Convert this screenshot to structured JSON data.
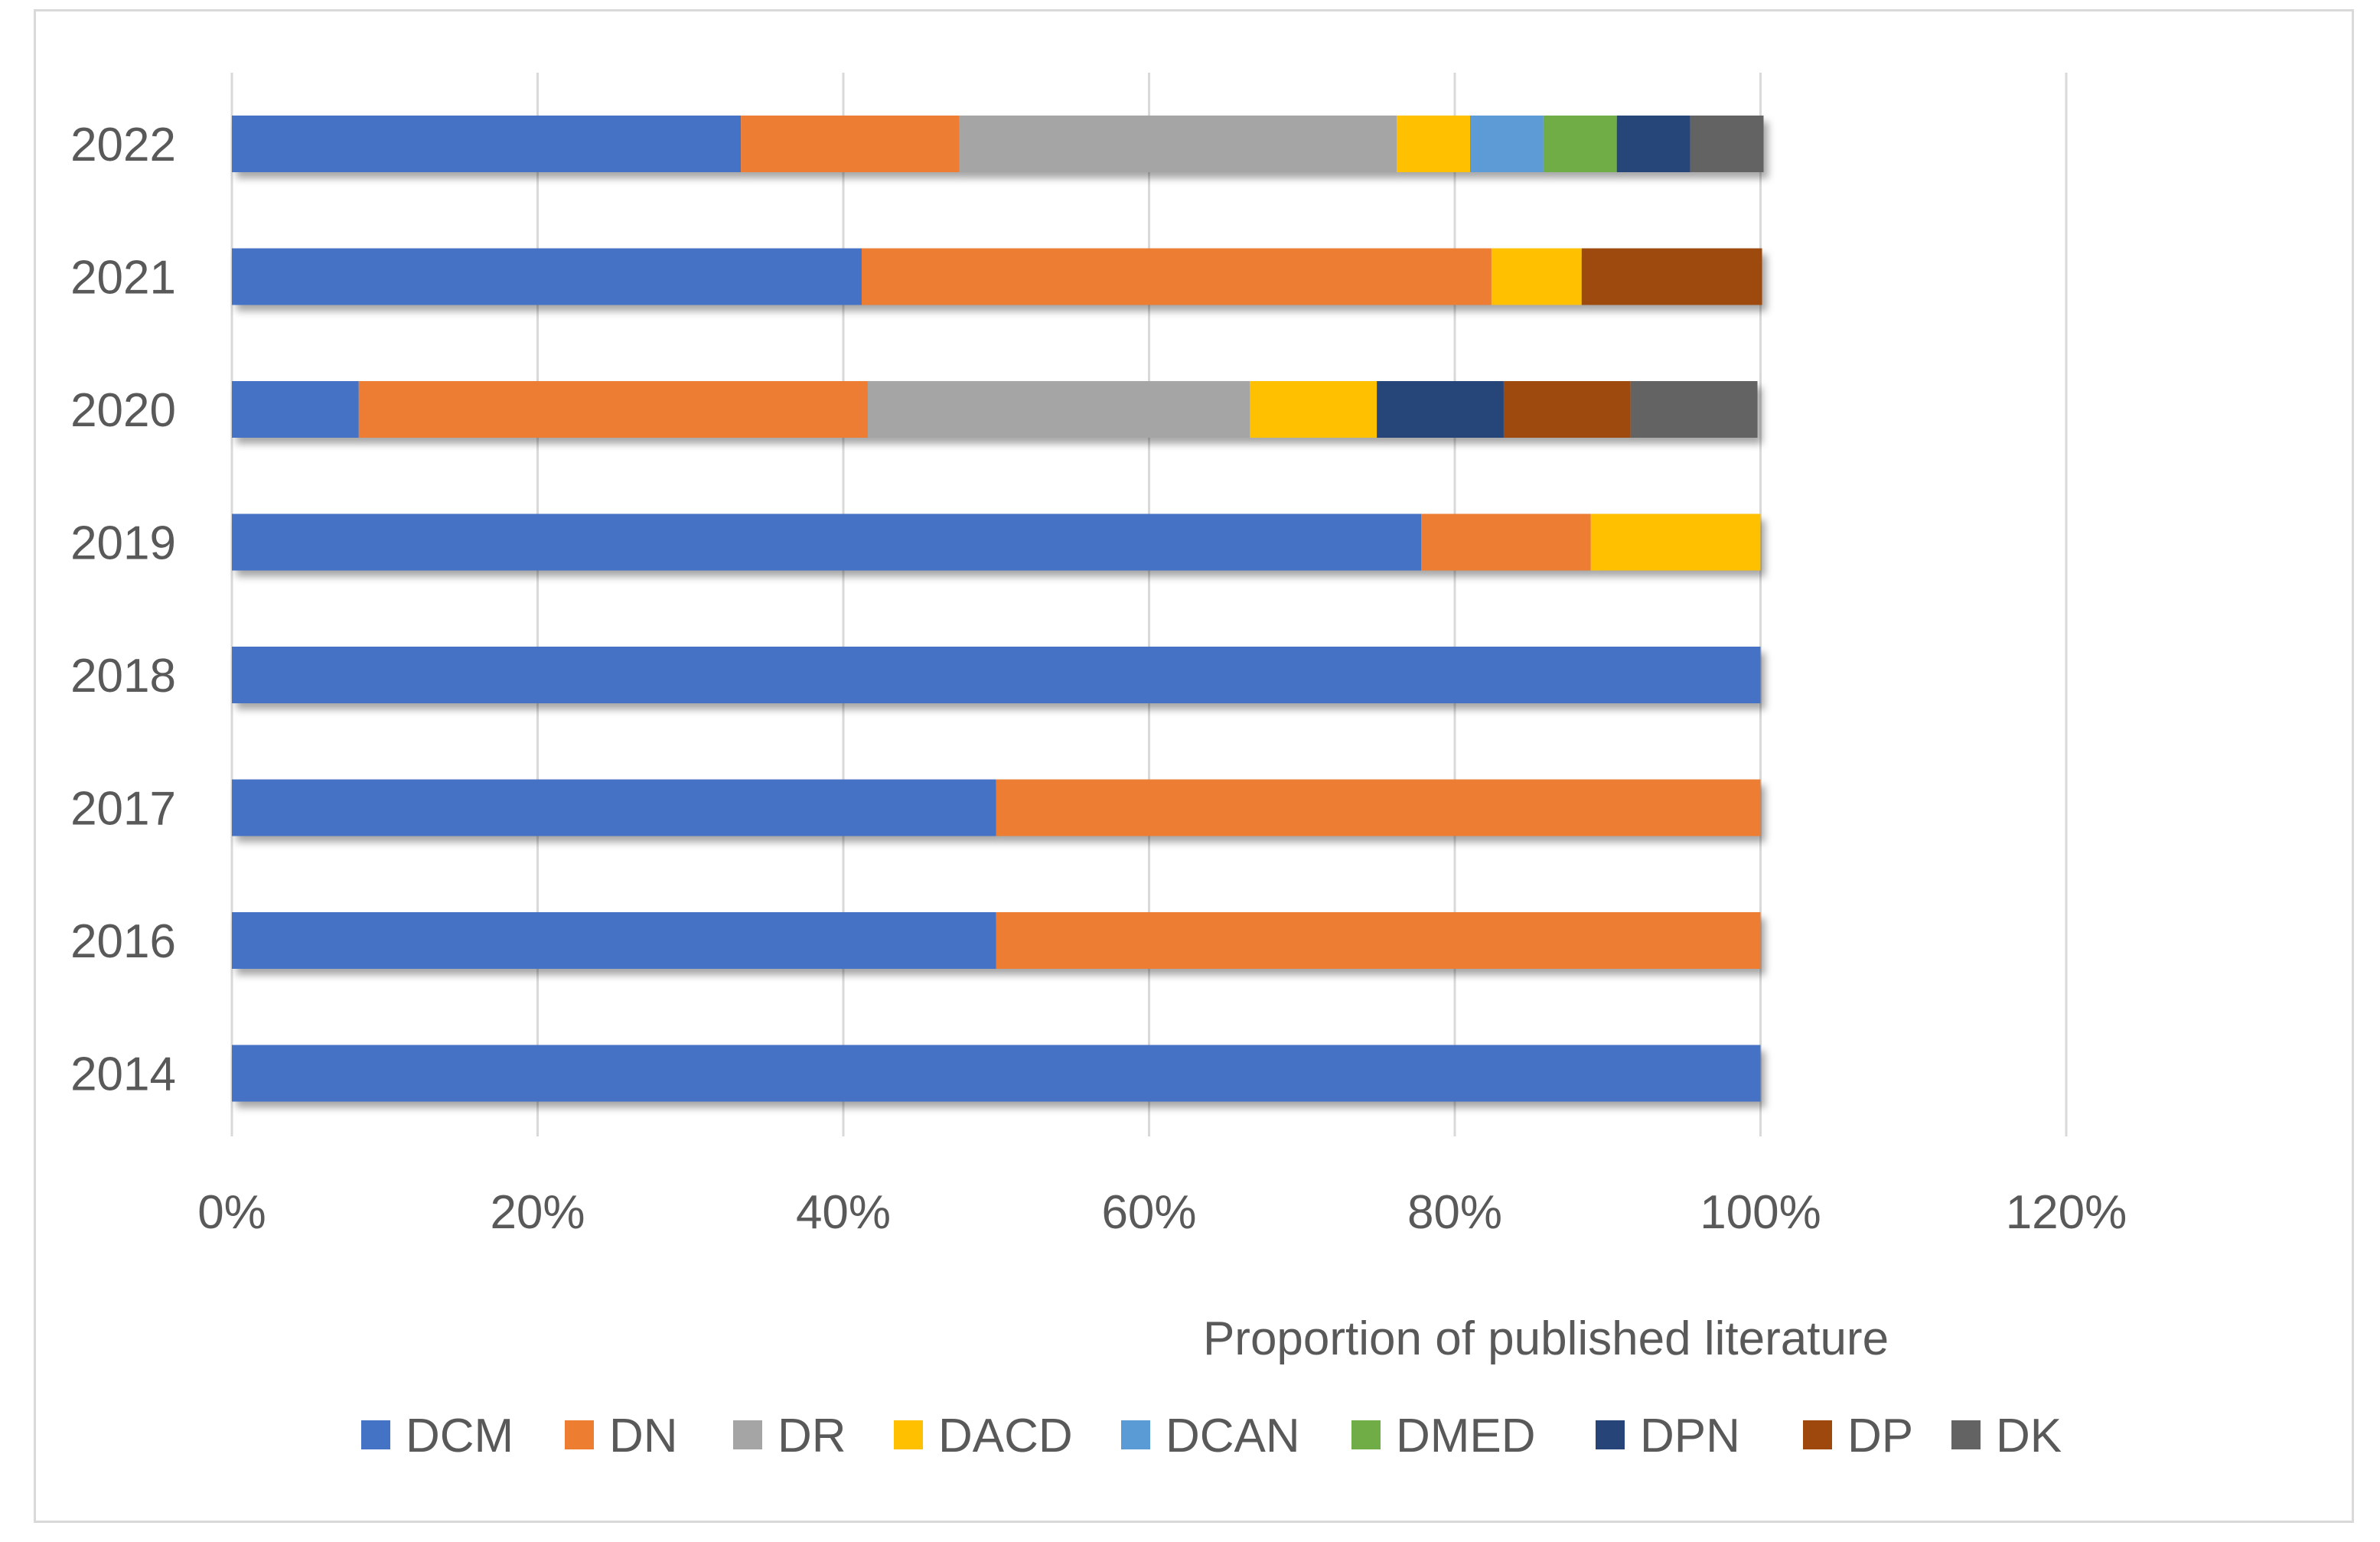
{
  "chart_data": {
    "type": "bar",
    "orientation": "horizontal",
    "stacked": true,
    "title": "",
    "xlabel": "Proportion of published literature",
    "ylabel": "",
    "xlim": [
      0,
      120
    ],
    "x_ticks": [
      "0%",
      "20%",
      "40%",
      "60%",
      "80%",
      "100%",
      "120%"
    ],
    "categories": [
      "2022",
      "2021",
      "2020",
      "2019",
      "2018",
      "2017",
      "2016",
      "2014"
    ],
    "grid": "vertical",
    "legend_position": "bottom",
    "series": [
      {
        "name": "DCM",
        "color": "#4472c4",
        "values": [
          33.3,
          41.2,
          8.3,
          77.8,
          100,
          50,
          50,
          100
        ]
      },
      {
        "name": "DN",
        "color": "#ed7d31",
        "values": [
          14.3,
          41.2,
          33.3,
          11.1,
          0,
          50,
          50,
          0
        ]
      },
      {
        "name": "DR",
        "color": "#a5a5a5",
        "values": [
          28.6,
          0,
          25.0,
          0,
          0,
          0,
          0,
          0
        ]
      },
      {
        "name": "DACD",
        "color": "#ffc000",
        "values": [
          4.8,
          5.9,
          8.3,
          11.1,
          0,
          0,
          0,
          0
        ]
      },
      {
        "name": "DCAN",
        "color": "#5b9bd5",
        "values": [
          4.8,
          0,
          0,
          0,
          0,
          0,
          0,
          0
        ]
      },
      {
        "name": "DMED",
        "color": "#70ad47",
        "values": [
          4.8,
          0,
          0,
          0,
          0,
          0,
          0,
          0
        ]
      },
      {
        "name": "DPN",
        "color": "#264478",
        "values": [
          4.8,
          0,
          8.3,
          0,
          0,
          0,
          0,
          0
        ]
      },
      {
        "name": "DP",
        "color": "#9e480e",
        "values": [
          0,
          11.8,
          8.3,
          0,
          0,
          0,
          0,
          0
        ]
      },
      {
        "name": "DK",
        "color": "#636363",
        "values": [
          4.8,
          0,
          8.3,
          0,
          0,
          0,
          0,
          0
        ]
      }
    ]
  }
}
